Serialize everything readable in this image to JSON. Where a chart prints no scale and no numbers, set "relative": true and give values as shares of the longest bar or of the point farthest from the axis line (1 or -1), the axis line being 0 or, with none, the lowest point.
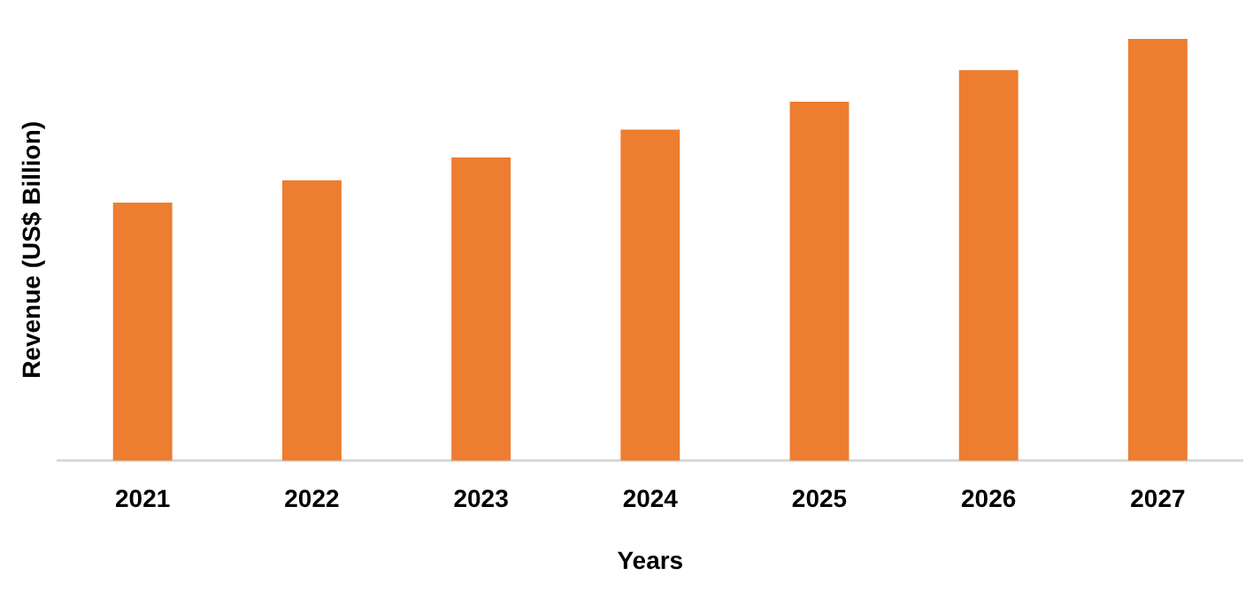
{
  "chart_data": {
    "type": "bar",
    "xlabel": "Years",
    "ylabel": "Revenue (US$ Billion)",
    "relative": true,
    "grid": false,
    "legend": false,
    "categories": [
      "2021",
      "2022",
      "2023",
      "2024",
      "2025",
      "2026",
      "2027"
    ],
    "values": [
      0.612,
      0.665,
      0.719,
      0.785,
      0.851,
      0.926,
      1
    ],
    "color": "#ed7d31"
  }
}
